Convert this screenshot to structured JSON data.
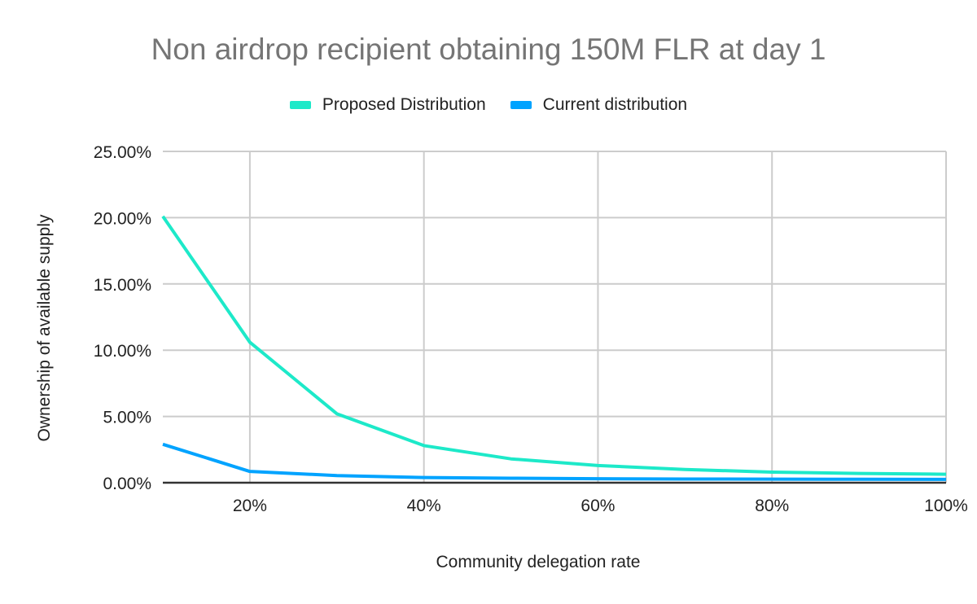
{
  "chart_data": {
    "type": "line",
    "title": "Non airdrop recipient obtaining 150M FLR at day 1",
    "xlabel": "Community delegation rate",
    "ylabel": "Ownership of available supply",
    "x": [
      10,
      20,
      30,
      40,
      50,
      60,
      70,
      80,
      90,
      100
    ],
    "xlim": [
      10,
      100
    ],
    "ylim": [
      0,
      25
    ],
    "x_ticks": [
      "20%",
      "40%",
      "60%",
      "80%",
      "100%"
    ],
    "y_ticks": [
      "0.00%",
      "5.00%",
      "10.00%",
      "15.00%",
      "20.00%",
      "25.00%"
    ],
    "grid": true,
    "legend_position": "top",
    "series": [
      {
        "name": "Proposed Distribution",
        "color": "#1de9c9",
        "values": [
          20.1,
          10.6,
          5.2,
          2.8,
          1.8,
          1.3,
          1.0,
          0.8,
          0.7,
          0.64
        ]
      },
      {
        "name": "Current distribution",
        "color": "#00a3ff",
        "values": [
          2.9,
          0.85,
          0.54,
          0.39,
          0.34,
          0.3,
          0.28,
          0.27,
          0.26,
          0.25
        ]
      }
    ]
  }
}
